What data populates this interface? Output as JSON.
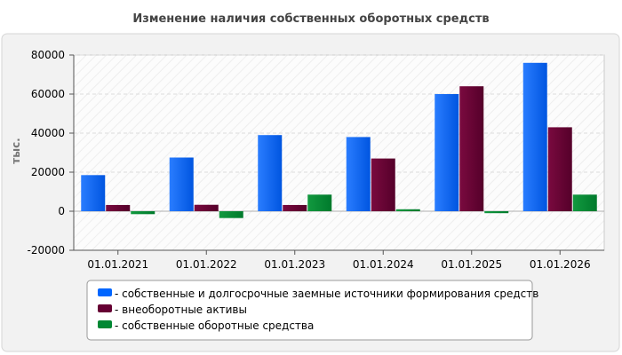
{
  "chart_data": {
    "type": "bar",
    "title": "Изменение наличия собственных оборотных средств",
    "ylabel": "тыс.",
    "xlabel": "",
    "categories": [
      "01.01.2021",
      "01.01.2022",
      "01.01.2023",
      "01.01.2024",
      "01.01.2025",
      "01.01.2026"
    ],
    "ylim": [
      -20000,
      80000
    ],
    "yticks": [
      -20000,
      0,
      20000,
      40000,
      60000,
      80000
    ],
    "grid": true,
    "legend_position": "bottom",
    "series": [
      {
        "name": "- собственные и долгосрочные заемные источники формирования средств",
        "color": "#0066ff",
        "values": [
          18500,
          27500,
          39000,
          38000,
          60000,
          76000
        ]
      },
      {
        "name": "- внеоборотные активы",
        "color": "#660033",
        "values": [
          3200,
          3300,
          3200,
          27000,
          64000,
          43000
        ]
      },
      {
        "name": "- собственные оборотные средства",
        "color": "#008833",
        "values": [
          -1500,
          -3500,
          8500,
          1000,
          -1000,
          8500
        ]
      }
    ]
  }
}
